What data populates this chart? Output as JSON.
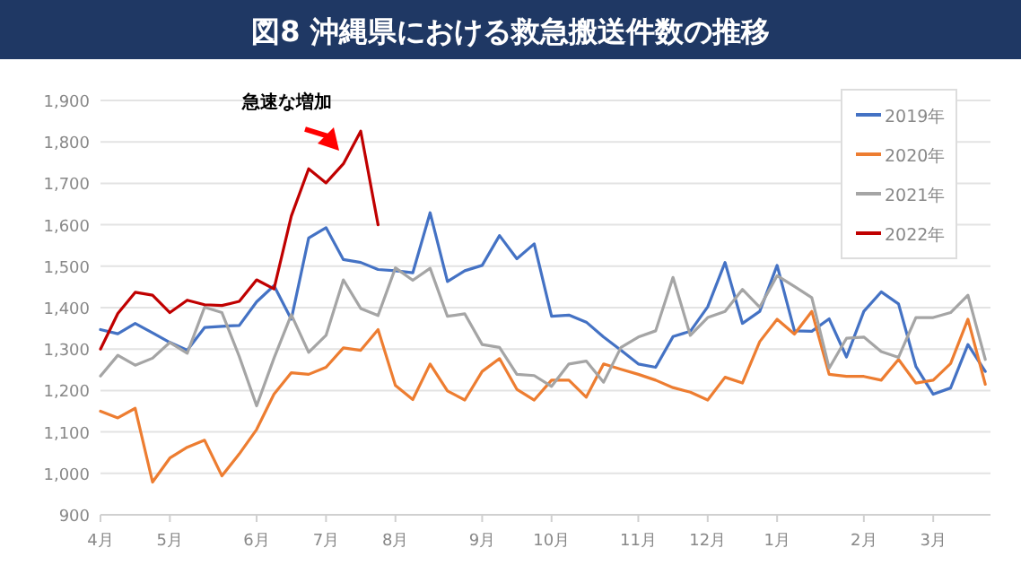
{
  "chart_data": {
    "type": "line",
    "title": "図8 沖縄県における救急搬送件数の推移",
    "categories": [
      "4月",
      null,
      null,
      null,
      "5月",
      null,
      null,
      null,
      null,
      "6月",
      null,
      null,
      null,
      "7月",
      null,
      null,
      null,
      "8月",
      null,
      null,
      null,
      null,
      "9月",
      null,
      null,
      null,
      "10月",
      null,
      null,
      null,
      null,
      "11月",
      null,
      null,
      null,
      "12月",
      null,
      null,
      null,
      "1月",
      null,
      null,
      null,
      null,
      "2月",
      null,
      null,
      null,
      "3月",
      null,
      null,
      null
    ],
    "ylim": [
      900,
      1900
    ],
    "yticks": [
      {
        "value": 900,
        "label": "900"
      },
      {
        "value": 1000,
        "label": "1,000"
      },
      {
        "value": 1100,
        "label": "1,100"
      },
      {
        "value": 1200,
        "label": "1,200"
      },
      {
        "value": 1300,
        "label": "1,300"
      },
      {
        "value": 1400,
        "label": "1,400"
      },
      {
        "value": 1500,
        "label": "1,500"
      },
      {
        "value": 1600,
        "label": "1,600"
      },
      {
        "value": 1700,
        "label": "1,700"
      },
      {
        "value": 1800,
        "label": "1,800"
      },
      {
        "value": 1900,
        "label": "1,900"
      }
    ],
    "grid": "y",
    "legend": "top right",
    "marker": "none",
    "line_style": "solid",
    "annotations": [
      "急速な増加"
    ],
    "series": [
      {
        "name": "2019年",
        "color": "#4472c4",
        "values": [
          1347,
          1337,
          1362,
          1339,
          1316,
          1297,
          1352,
          1355,
          1357,
          1414,
          1453,
          1372,
          1568,
          1593,
          1516,
          1509,
          1492,
          1489,
          1484,
          1629,
          1463,
          1489,
          1502,
          1574,
          1518,
          1554,
          1379,
          1382,
          1365,
          1329,
          1297,
          1264,
          1256,
          1330,
          1343,
          1402,
          1509,
          1362,
          1391,
          1502,
          1344,
          1343,
          1373,
          1281,
          1391,
          1438,
          1409,
          1258,
          1191,
          1206,
          1311,
          1246
        ]
      },
      {
        "name": "2020年",
        "color": "#ed7d31",
        "values": [
          1150,
          1134,
          1157,
          979,
          1037,
          1063,
          1080,
          994,
          1047,
          1106,
          1191,
          1243,
          1239,
          1256,
          1303,
          1297,
          1347,
          1212,
          1178,
          1264,
          1199,
          1177,
          1246,
          1277,
          1203,
          1177,
          1225,
          1225,
          1184,
          1264,
          1251,
          1239,
          1225,
          1207,
          1196,
          1177,
          1232,
          1218,
          1318,
          1372,
          1336,
          1391,
          1239,
          1234,
          1234,
          1225,
          1275,
          1218,
          1225,
          1265,
          1372,
          1215
        ]
      },
      {
        "name": "2021年",
        "color": "#a5a5a5",
        "values": [
          1235,
          1285,
          1261,
          1278,
          1316,
          1290,
          1401,
          1388,
          1282,
          1163,
          1278,
          1383,
          1292,
          1333,
          1467,
          1398,
          1381,
          1496,
          1466,
          1495,
          1379,
          1385,
          1311,
          1304,
          1239,
          1236,
          1210,
          1264,
          1271,
          1220,
          1304,
          1329,
          1344,
          1473,
          1333,
          1376,
          1391,
          1444,
          1401,
          1477,
          1451,
          1424,
          1254,
          1326,
          1329,
          1294,
          1280,
          1376,
          1376,
          1388,
          1430,
          1275
        ]
      },
      {
        "name": "2022年",
        "color": "#c00000",
        "values": [
          1300,
          1386,
          1437,
          1430,
          1388,
          1418,
          1407,
          1405,
          1415,
          1467,
          1445,
          1621,
          1735,
          1701,
          1747,
          1826,
          1600,
          null,
          null,
          null,
          null,
          null,
          null,
          null,
          null,
          null,
          null,
          null,
          null,
          null,
          null,
          null,
          null,
          null,
          null,
          null,
          null,
          null,
          null,
          null,
          null,
          null,
          null,
          null,
          null,
          null,
          null,
          null,
          null,
          null,
          null,
          null
        ]
      }
    ]
  }
}
